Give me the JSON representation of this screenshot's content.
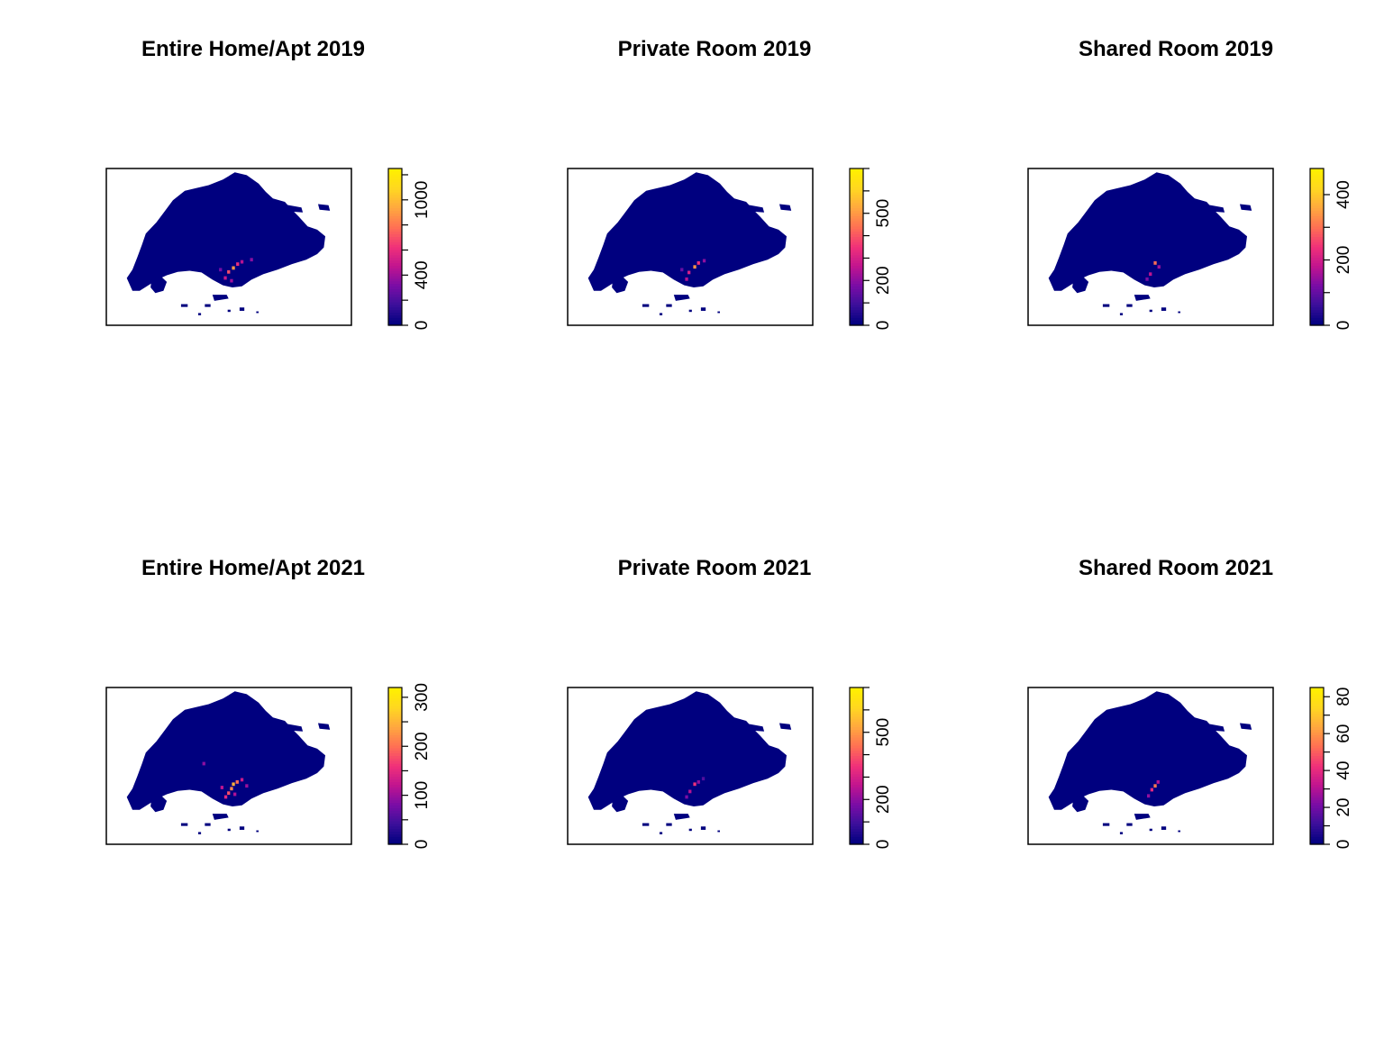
{
  "figure": {
    "palette": [
      "#00007F",
      "#3B0F9A",
      "#7A0DA6",
      "#C0148F",
      "#F0307A",
      "#FF6E54",
      "#FFA640",
      "#FFD622",
      "#FFEF00"
    ],
    "land_color": "#00007F",
    "border_color": "#000000"
  },
  "chart_data": [
    {
      "type": "heatmap",
      "title": "Entire Home/Apt 2019",
      "legend": {
        "min": 0,
        "max": 1250,
        "ticks": [
          0,
          200,
          400,
          600,
          800,
          1000,
          1200
        ],
        "labels": [
          "0",
          "400",
          "1000"
        ]
      },
      "hotspots": [
        {
          "lon": 103.852,
          "lat": 1.303,
          "value": 900
        },
        {
          "lon": 103.842,
          "lat": 1.296,
          "value": 700
        },
        {
          "lon": 103.861,
          "lat": 1.31,
          "value": 600
        },
        {
          "lon": 103.835,
          "lat": 1.285,
          "value": 500
        },
        {
          "lon": 103.87,
          "lat": 1.314,
          "value": 450
        },
        {
          "lon": 103.848,
          "lat": 1.28,
          "value": 400
        },
        {
          "lon": 103.89,
          "lat": 1.318,
          "value": 350
        },
        {
          "lon": 103.825,
          "lat": 1.3,
          "value": 300
        }
      ]
    },
    {
      "type": "heatmap",
      "title": "Private Room 2019",
      "legend": {
        "min": 0,
        "max": 700,
        "ticks": [
          0,
          100,
          200,
          300,
          400,
          500,
          600,
          700
        ],
        "labels": [
          "0",
          "200",
          "500"
        ]
      },
      "hotspots": [
        {
          "lon": 103.852,
          "lat": 1.305,
          "value": 500
        },
        {
          "lon": 103.86,
          "lat": 1.312,
          "value": 350
        },
        {
          "lon": 103.84,
          "lat": 1.295,
          "value": 300
        },
        {
          "lon": 103.835,
          "lat": 1.283,
          "value": 250
        },
        {
          "lon": 103.872,
          "lat": 1.316,
          "value": 200
        },
        {
          "lon": 103.825,
          "lat": 1.3,
          "value": 150
        }
      ]
    },
    {
      "type": "heatmap",
      "title": "Shared Room 2019",
      "legend": {
        "min": 0,
        "max": 480,
        "ticks": [
          0,
          100,
          200,
          300,
          400
        ],
        "labels": [
          "0",
          "200",
          "400"
        ]
      },
      "hotspots": [
        {
          "lon": 103.852,
          "lat": 1.312,
          "value": 300
        },
        {
          "lon": 103.842,
          "lat": 1.292,
          "value": 180
        },
        {
          "lon": 103.86,
          "lat": 1.305,
          "value": 150
        },
        {
          "lon": 103.835,
          "lat": 1.283,
          "value": 120
        }
      ]
    },
    {
      "type": "heatmap",
      "title": "Entire Home/Apt 2021",
      "legend": {
        "min": 0,
        "max": 320,
        "ticks": [
          0,
          50,
          100,
          150,
          200,
          250,
          300
        ],
        "labels": [
          "0",
          "100",
          "200",
          "300"
        ]
      },
      "hotspots": [
        {
          "lon": 103.852,
          "lat": 1.308,
          "value": 250
        },
        {
          "lon": 103.848,
          "lat": 1.3,
          "value": 220
        },
        {
          "lon": 103.86,
          "lat": 1.312,
          "value": 200
        },
        {
          "lon": 103.842,
          "lat": 1.292,
          "value": 180
        },
        {
          "lon": 103.836,
          "lat": 1.285,
          "value": 150
        },
        {
          "lon": 103.87,
          "lat": 1.316,
          "value": 130
        },
        {
          "lon": 103.828,
          "lat": 1.302,
          "value": 120
        },
        {
          "lon": 103.855,
          "lat": 1.29,
          "value": 110
        },
        {
          "lon": 103.88,
          "lat": 1.305,
          "value": 100
        },
        {
          "lon": 103.79,
          "lat": 1.345,
          "value": 90
        }
      ]
    },
    {
      "type": "heatmap",
      "title": "Private Room 2021",
      "legend": {
        "min": 0,
        "max": 700,
        "ticks": [
          0,
          100,
          200,
          300,
          400,
          500,
          600,
          700
        ],
        "labels": [
          "0",
          "200",
          "500"
        ]
      },
      "hotspots": [
        {
          "lon": 103.852,
          "lat": 1.308,
          "value": 350
        },
        {
          "lon": 103.842,
          "lat": 1.295,
          "value": 250
        },
        {
          "lon": 103.86,
          "lat": 1.312,
          "value": 200
        },
        {
          "lon": 103.835,
          "lat": 1.285,
          "value": 180
        },
        {
          "lon": 103.87,
          "lat": 1.318,
          "value": 120
        }
      ]
    },
    {
      "type": "heatmap",
      "title": "Shared Room 2021",
      "legend": {
        "min": 0,
        "max": 85,
        "ticks": [
          0,
          10,
          20,
          30,
          40,
          50,
          60,
          70,
          80
        ],
        "labels": [
          "0",
          "20",
          "40",
          "60",
          "80"
        ]
      },
      "hotspots": [
        {
          "lon": 103.852,
          "lat": 1.305,
          "value": 55
        },
        {
          "lon": 103.845,
          "lat": 1.298,
          "value": 40
        },
        {
          "lon": 103.858,
          "lat": 1.312,
          "value": 30
        },
        {
          "lon": 103.838,
          "lat": 1.287,
          "value": 25
        }
      ]
    }
  ]
}
